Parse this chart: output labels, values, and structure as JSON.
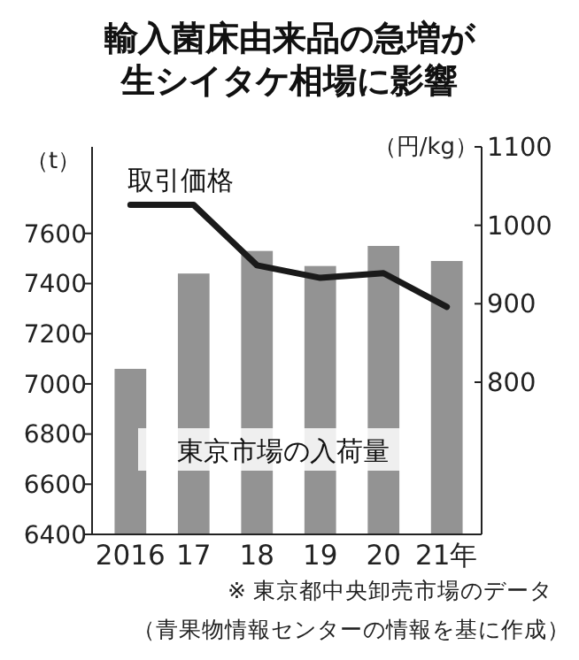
{
  "chart_data": {
    "type": "bar",
    "title": "輸入菌床由来品の急増が生シイタケ相場に影響",
    "ylabel": "（t）",
    "y2label": "（円/kg）",
    "categories": [
      "2016",
      "17",
      "18",
      "19",
      "20",
      "21年"
    ],
    "series": [
      {
        "name": "東京市場の入荷量",
        "color": "#939393",
        "values": [
          7060,
          7440,
          7530,
          7470,
          7550,
          7490
        ]
      },
      {
        "name": "取引価格",
        "type": "line",
        "axis": "y2",
        "color": "#1a1a1a",
        "values": [
          1026,
          1026,
          949,
          933,
          939,
          896
        ]
      }
    ],
    "ylim": [
      6400,
      7945
    ],
    "yticks": [
      6400,
      6600,
      6800,
      7000,
      7200,
      7400,
      7600
    ],
    "y2lim": [
      606,
      1100
    ],
    "y2ticks": [
      800,
      900,
      1000,
      1100
    ],
    "annotations": [
      "※ 東京都中央卸売市場のデータ",
      "（青果物情報センターの情報を基に作成）"
    ]
  }
}
